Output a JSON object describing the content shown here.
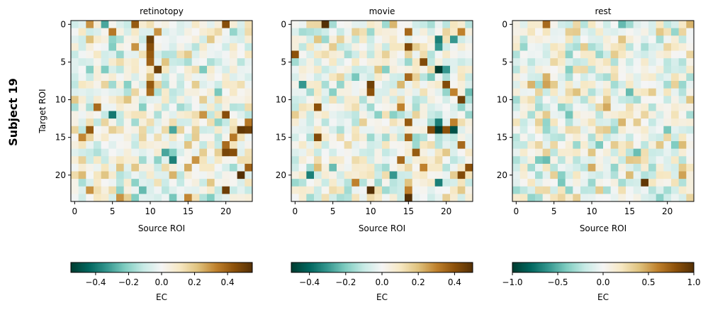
{
  "figure": {
    "row_label": "Subject 19"
  },
  "chart_data": [
    {
      "type": "heatmap",
      "title": "retinotopy",
      "xlabel": "Source ROI",
      "ylabel": "Target ROI",
      "rows": 24,
      "cols": 24,
      "xticks": [
        0,
        5,
        10,
        15,
        20
      ],
      "yticks": [
        0,
        5,
        10,
        15,
        20
      ],
      "cmap": "BrBG_r",
      "colorbar": {
        "label": "EC",
        "vmin": -0.55,
        "vmax": 0.55,
        "ticks": [
          -0.4,
          -0.2,
          0.0,
          0.2,
          0.4
        ],
        "tick_labels": [
          "−0.4",
          "−0.2",
          "0.0",
          "0.2",
          "0.4"
        ]
      },
      "seed": 19,
      "strong_cells": [
        {
          "r": 0,
          "c": 8,
          "v": 0.42
        },
        {
          "r": 0,
          "c": 20,
          "v": 0.45
        },
        {
          "r": 0,
          "c": 2,
          "v": 0.3
        },
        {
          "r": 0,
          "c": 4,
          "v": -0.3
        },
        {
          "r": 1,
          "c": 5,
          "v": 0.35
        },
        {
          "r": 1,
          "c": 11,
          "v": 0.3
        },
        {
          "r": 2,
          "c": 10,
          "v": 0.5
        },
        {
          "r": 3,
          "c": 10,
          "v": 0.45
        },
        {
          "r": 3,
          "c": 8,
          "v": 0.3
        },
        {
          "r": 4,
          "c": 10,
          "v": 0.42
        },
        {
          "r": 5,
          "c": 10,
          "v": 0.4
        },
        {
          "r": 6,
          "c": 11,
          "v": 0.5
        },
        {
          "r": 8,
          "c": 10,
          "v": 0.42
        },
        {
          "r": 9,
          "c": 10,
          "v": 0.38
        },
        {
          "r": 11,
          "c": 3,
          "v": 0.38
        },
        {
          "r": 12,
          "c": 5,
          "v": -0.4
        },
        {
          "r": 12,
          "c": 20,
          "v": 0.45
        },
        {
          "r": 12,
          "c": 17,
          "v": 0.3
        },
        {
          "r": 13,
          "c": 23,
          "v": 0.35
        },
        {
          "r": 14,
          "c": 2,
          "v": 0.42
        },
        {
          "r": 14,
          "c": 22,
          "v": 0.52
        },
        {
          "r": 14,
          "c": 23,
          "v": 0.5
        },
        {
          "r": 14,
          "c": 13,
          "v": -0.3
        },
        {
          "r": 15,
          "c": 1,
          "v": 0.32
        },
        {
          "r": 15,
          "c": 21,
          "v": 0.35
        },
        {
          "r": 16,
          "c": 20,
          "v": 0.38
        },
        {
          "r": 17,
          "c": 12,
          "v": -0.3
        },
        {
          "r": 17,
          "c": 20,
          "v": 0.48
        },
        {
          "r": 17,
          "c": 21,
          "v": 0.45
        },
        {
          "r": 18,
          "c": 13,
          "v": -0.38
        },
        {
          "r": 18,
          "c": 16,
          "v": 0.3
        },
        {
          "r": 19,
          "c": 23,
          "v": 0.4
        },
        {
          "r": 20,
          "c": 22,
          "v": 0.55
        },
        {
          "r": 22,
          "c": 20,
          "v": 0.5
        },
        {
          "r": 22,
          "c": 2,
          "v": 0.3
        },
        {
          "r": 23,
          "c": 15,
          "v": 0.32
        },
        {
          "r": 23,
          "c": 6,
          "v": 0.3
        }
      ]
    },
    {
      "type": "heatmap",
      "title": "movie",
      "xlabel": "Source ROI",
      "ylabel": "",
      "rows": 24,
      "cols": 24,
      "xticks": [
        0,
        5,
        10,
        15,
        20
      ],
      "yticks": [
        0,
        5,
        10,
        15,
        20
      ],
      "cmap": "BrBG_r",
      "colorbar": {
        "label": "EC",
        "vmin": -0.5,
        "vmax": 0.5,
        "ticks": [
          -0.4,
          -0.2,
          0.0,
          0.2,
          0.4
        ],
        "tick_labels": [
          "−0.4",
          "−0.2",
          "0.0",
          "0.2",
          "0.4"
        ]
      },
      "seed": 57,
      "strong_cells": [
        {
          "r": 0,
          "c": 4,
          "v": 0.5
        },
        {
          "r": 1,
          "c": 15,
          "v": 0.35
        },
        {
          "r": 1,
          "c": 22,
          "v": 0.3
        },
        {
          "r": 2,
          "c": 19,
          "v": -0.35
        },
        {
          "r": 2,
          "c": 21,
          "v": -0.3
        },
        {
          "r": 3,
          "c": 15,
          "v": 0.42
        },
        {
          "r": 3,
          "c": 19,
          "v": -0.3
        },
        {
          "r": 4,
          "c": 0,
          "v": 0.4
        },
        {
          "r": 5,
          "c": 17,
          "v": 0.42
        },
        {
          "r": 6,
          "c": 19,
          "v": -0.5
        },
        {
          "r": 6,
          "c": 20,
          "v": -0.3
        },
        {
          "r": 7,
          "c": 15,
          "v": 0.35
        },
        {
          "r": 8,
          "c": 10,
          "v": 0.45
        },
        {
          "r": 8,
          "c": 20,
          "v": 0.42
        },
        {
          "r": 8,
          "c": 1,
          "v": -0.3
        },
        {
          "r": 9,
          "c": 10,
          "v": 0.4
        },
        {
          "r": 9,
          "c": 21,
          "v": 0.3
        },
        {
          "r": 10,
          "c": 22,
          "v": 0.45
        },
        {
          "r": 11,
          "c": 3,
          "v": 0.4
        },
        {
          "r": 11,
          "c": 14,
          "v": 0.3
        },
        {
          "r": 13,
          "c": 15,
          "v": 0.38
        },
        {
          "r": 13,
          "c": 19,
          "v": -0.35
        },
        {
          "r": 13,
          "c": 21,
          "v": 0.3
        },
        {
          "r": 14,
          "c": 18,
          "v": 0.42
        },
        {
          "r": 14,
          "c": 19,
          "v": -0.5
        },
        {
          "r": 14,
          "c": 20,
          "v": 0.4
        },
        {
          "r": 14,
          "c": 21,
          "v": -0.45
        },
        {
          "r": 15,
          "c": 3,
          "v": 0.42
        },
        {
          "r": 15,
          "c": 15,
          "v": 0.35
        },
        {
          "r": 16,
          "c": 22,
          "v": 0.35
        },
        {
          "r": 17,
          "c": 16,
          "v": 0.38
        },
        {
          "r": 18,
          "c": 14,
          "v": 0.35
        },
        {
          "r": 19,
          "c": 17,
          "v": 0.3
        },
        {
          "r": 19,
          "c": 23,
          "v": 0.4
        },
        {
          "r": 20,
          "c": 2,
          "v": -0.35
        },
        {
          "r": 20,
          "c": 13,
          "v": -0.3
        },
        {
          "r": 20,
          "c": 22,
          "v": 0.42
        },
        {
          "r": 21,
          "c": 19,
          "v": -0.35
        },
        {
          "r": 21,
          "c": 8,
          "v": 0.3
        },
        {
          "r": 22,
          "c": 10,
          "v": 0.5
        },
        {
          "r": 22,
          "c": 15,
          "v": 0.3
        },
        {
          "r": 23,
          "c": 15,
          "v": 0.5
        }
      ]
    },
    {
      "type": "heatmap",
      "title": "rest",
      "xlabel": "Source ROI",
      "ylabel": "",
      "rows": 24,
      "cols": 24,
      "xticks": [
        0,
        5,
        10,
        15,
        20
      ],
      "yticks": [
        0,
        5,
        10,
        15,
        20
      ],
      "cmap": "BrBG_r",
      "colorbar": {
        "label": "EC",
        "vmin": -1.0,
        "vmax": 1.0,
        "ticks": [
          -1.0,
          -0.5,
          0.0,
          0.5,
          1.0
        ],
        "tick_labels": [
          "−1.0",
          "−0.5",
          "0.0",
          "0.5",
          "1.0"
        ]
      },
      "seed": 101,
      "strong_cells": [
        {
          "r": 0,
          "c": 4,
          "v": 0.7
        },
        {
          "r": 1,
          "c": 8,
          "v": 0.35
        },
        {
          "r": 1,
          "c": 22,
          "v": 0.3
        },
        {
          "r": 7,
          "c": 4,
          "v": 0.45
        },
        {
          "r": 8,
          "c": 4,
          "v": 0.5
        },
        {
          "r": 8,
          "c": 13,
          "v": -0.3
        },
        {
          "r": 9,
          "c": 8,
          "v": 0.4
        },
        {
          "r": 10,
          "c": 12,
          "v": 0.35
        },
        {
          "r": 12,
          "c": 4,
          "v": 0.35
        },
        {
          "r": 12,
          "c": 17,
          "v": 0.3
        },
        {
          "r": 14,
          "c": 12,
          "v": 0.35
        },
        {
          "r": 16,
          "c": 22,
          "v": 0.42
        },
        {
          "r": 16,
          "c": 13,
          "v": 0.35
        },
        {
          "r": 17,
          "c": 10,
          "v": 0.38
        },
        {
          "r": 18,
          "c": 16,
          "v": 0.35
        },
        {
          "r": 19,
          "c": 13,
          "v": -0.35
        },
        {
          "r": 20,
          "c": 22,
          "v": 0.5
        },
        {
          "r": 20,
          "c": 3,
          "v": -0.3
        },
        {
          "r": 21,
          "c": 17,
          "v": 0.95
        },
        {
          "r": 21,
          "c": 14,
          "v": -0.3
        },
        {
          "r": 22,
          "c": 11,
          "v": 0.35
        },
        {
          "r": 22,
          "c": 20,
          "v": -0.3
        },
        {
          "r": 23,
          "c": 2,
          "v": -0.35
        },
        {
          "r": 23,
          "c": 6,
          "v": 0.3
        }
      ]
    }
  ]
}
